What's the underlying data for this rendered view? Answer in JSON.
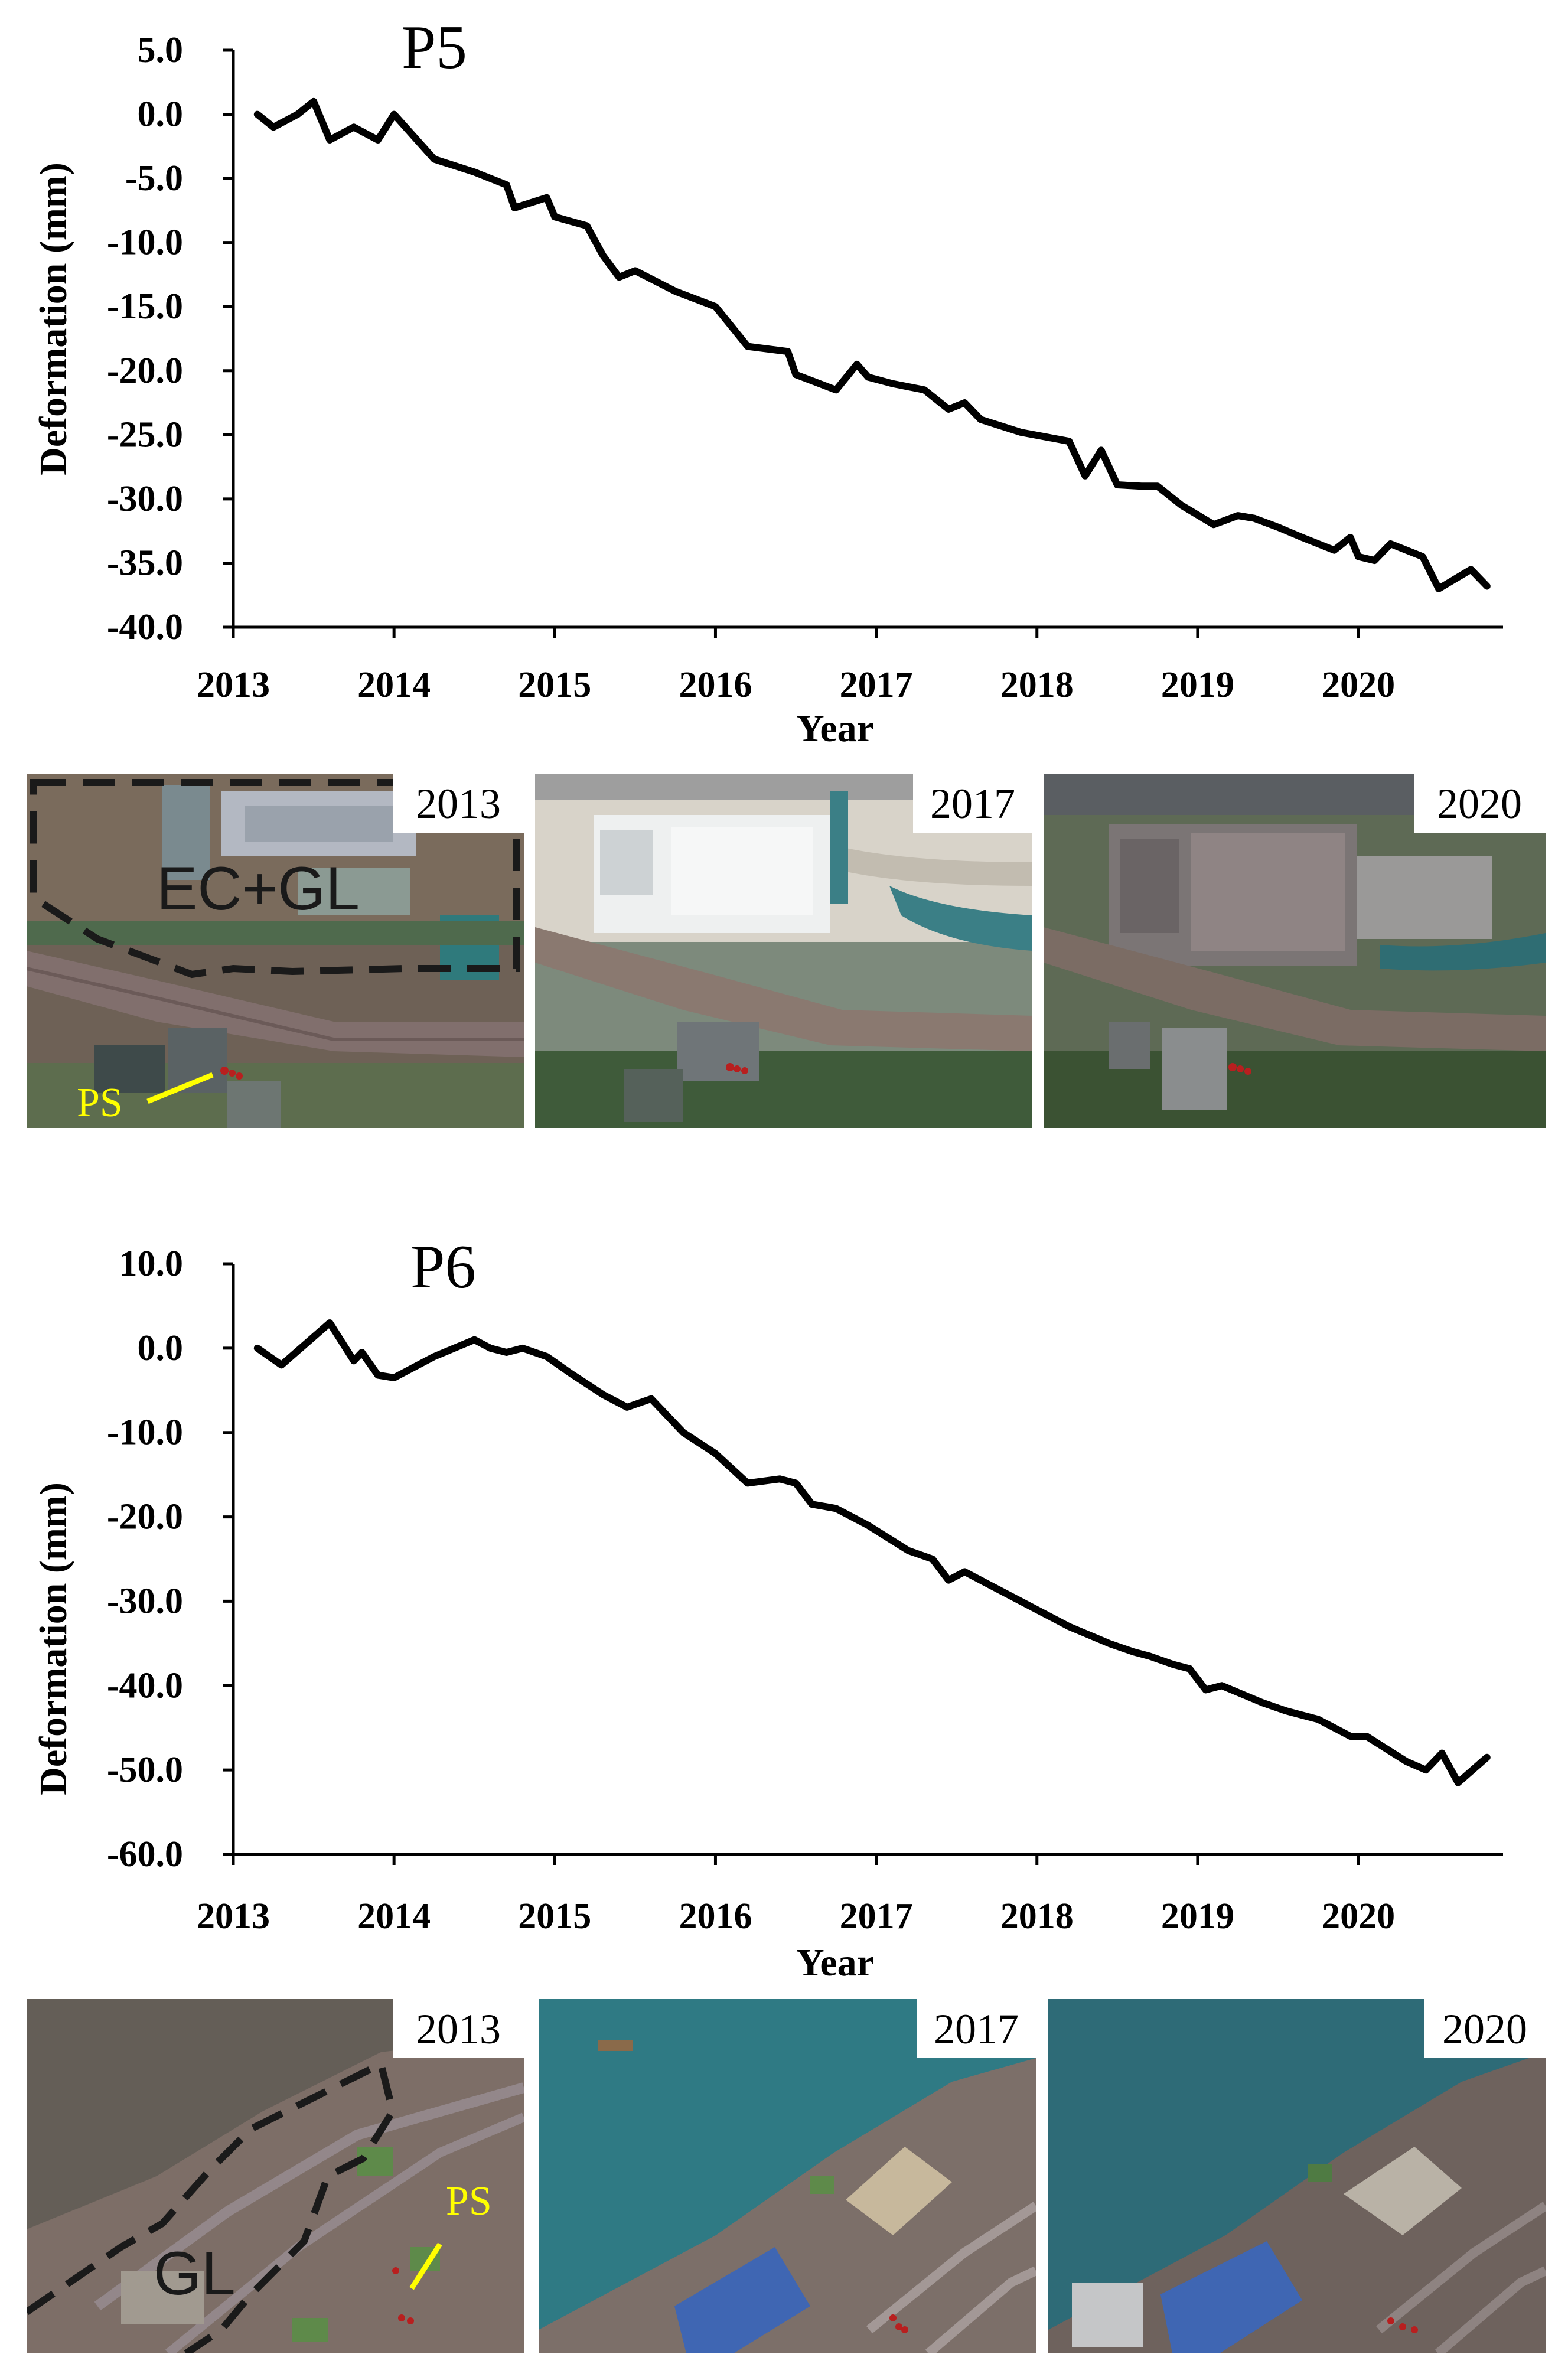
{
  "chart_data": [
    {
      "type": "line",
      "title": "P5",
      "xlabel": "Year",
      "ylabel": "Deformation (mm)",
      "xlim": [
        2013,
        2020.9
      ],
      "ylim": [
        -40,
        5
      ],
      "x_ticks": [
        "2013",
        "2014",
        "2015",
        "2016",
        "2017",
        "2018",
        "2019",
        "2020"
      ],
      "y_ticks": [
        "5.0",
        "0.0",
        "-5.0",
        "-10.0",
        "-15.0",
        "-20.0",
        "-25.0",
        "-30.0",
        "-35.0",
        "-40.0"
      ],
      "series": [
        {
          "name": "P5",
          "x": [
            2013.15,
            2013.25,
            2013.4,
            2013.5,
            2013.6,
            2013.75,
            2013.9,
            2014.0,
            2014.25,
            2014.5,
            2014.7,
            2014.75,
            2014.95,
            2015.0,
            2015.2,
            2015.3,
            2015.4,
            2015.5,
            2015.75,
            2016.0,
            2016.2,
            2016.45,
            2016.5,
            2016.75,
            2016.88,
            2016.95,
            2017.1,
            2017.3,
            2017.45,
            2017.55,
            2017.65,
            2017.9,
            2018.2,
            2018.3,
            2018.4,
            2018.5,
            2018.65,
            2018.75,
            2018.9,
            2019.1,
            2019.25,
            2019.35,
            2019.5,
            2019.65,
            2019.85,
            2019.95,
            2020.0,
            2020.1,
            2020.2,
            2020.4,
            2020.5,
            2020.7,
            2020.8
          ],
          "values": [
            0.0,
            -1.0,
            0.0,
            1.0,
            -2.0,
            -1.0,
            -2.0,
            0.0,
            -3.5,
            -4.5,
            -5.5,
            -7.3,
            -6.5,
            -8.0,
            -8.7,
            -11.0,
            -12.7,
            -12.2,
            -13.8,
            -15.0,
            -18.1,
            -18.5,
            -20.3,
            -21.5,
            -19.5,
            -20.5,
            -21.0,
            -21.5,
            -23.0,
            -22.5,
            -23.8,
            -24.8,
            -25.5,
            -28.2,
            -26.2,
            -28.9,
            -29.0,
            -29.0,
            -30.5,
            -32.0,
            -31.3,
            -31.5,
            -32.2,
            -33.0,
            -34.0,
            -33.0,
            -34.5,
            -34.8,
            -33.5,
            -34.5,
            -37.0,
            -35.5,
            -36.8
          ]
        }
      ]
    },
    {
      "type": "line",
      "title": "P6",
      "xlabel": "Year",
      "ylabel": "Deformation (mm)",
      "xlim": [
        2013,
        2020.9
      ],
      "ylim": [
        -60,
        10
      ],
      "x_ticks": [
        "2013",
        "2014",
        "2015",
        "2016",
        "2017",
        "2018",
        "2019",
        "2020"
      ],
      "y_ticks": [
        "10.0",
        "0.0",
        "-10.0",
        "-20.0",
        "-30.0",
        "-40.0",
        "-50.0",
        "-60.0"
      ],
      "series": [
        {
          "name": "P6",
          "x": [
            2013.15,
            2013.3,
            2013.6,
            2013.75,
            2013.8,
            2013.9,
            2014.0,
            2014.25,
            2014.5,
            2014.6,
            2014.7,
            2014.8,
            2014.95,
            2015.1,
            2015.3,
            2015.45,
            2015.6,
            2015.8,
            2016.0,
            2016.2,
            2016.4,
            2016.5,
            2016.6,
            2016.75,
            2016.95,
            2017.2,
            2017.35,
            2017.45,
            2017.55,
            2017.7,
            2017.9,
            2018.2,
            2018.45,
            2018.6,
            2018.7,
            2018.85,
            2018.95,
            2019.05,
            2019.15,
            2019.4,
            2019.55,
            2019.65,
            2019.75,
            2019.95,
            2020.05,
            2020.3,
            2020.42,
            2020.52,
            2020.62,
            2020.8
          ],
          "values": [
            0.0,
            -2.0,
            3.0,
            -1.5,
            -0.5,
            -3.2,
            -3.5,
            -1.0,
            1.0,
            0.0,
            -0.5,
            0.0,
            -1.0,
            -3.0,
            -5.5,
            -7.0,
            -6.0,
            -10.0,
            -12.5,
            -16.0,
            -15.5,
            -16.0,
            -18.5,
            -19.0,
            -21.0,
            -24.0,
            -25.0,
            -27.5,
            -26.5,
            -28.0,
            -30.0,
            -33.0,
            -35.0,
            -36.0,
            -36.5,
            -37.5,
            -38.0,
            -40.5,
            -40.0,
            -42.0,
            -43.0,
            -43.5,
            -44.0,
            -46.0,
            -46.0,
            -49.0,
            -50.0,
            -48.0,
            -51.5,
            -48.5
          ]
        }
      ]
    }
  ],
  "panels": {
    "p5": [
      {
        "year": "2013",
        "zone_label": "EC+GL",
        "ps_label": "PS"
      },
      {
        "year": "2017"
      },
      {
        "year": "2020"
      }
    ],
    "p6": [
      {
        "year": "2013",
        "zone_label": "GL",
        "ps_label": "PS"
      },
      {
        "year": "2017"
      },
      {
        "year": "2020"
      }
    ]
  },
  "colors": {
    "line": "#000000",
    "annotation": "#ffff00",
    "zone_outline": "#1a1a1a"
  }
}
